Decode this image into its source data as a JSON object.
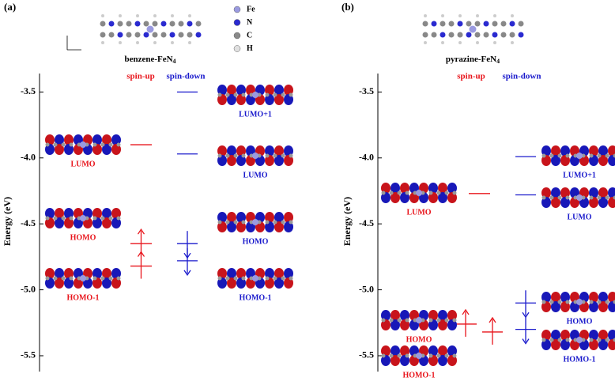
{
  "chart_data": [
    {
      "type": "energy_levels",
      "panel": "(a)",
      "molecule": "benzene-FeN",
      "molecule_sub": "4",
      "atoms": [
        "Fe",
        "N",
        "C",
        "H"
      ],
      "atom_colors": [
        "#9a9ae0",
        "#2a2ad0",
        "#8a8a8a",
        "#e0e0e0"
      ],
      "ylabel": "Energy (eV)",
      "ylim": [
        -5.62,
        -3.36
      ],
      "yticks": [
        -3.5,
        {
          "value": -4,
          "label": "-4.0"
        },
        -4.5,
        {
          "value": -5,
          "label": "-5.0"
        },
        -5.5
      ],
      "series": [
        {
          "name": "spin-up",
          "color": "#e8141b",
          "values": [
            -3.9,
            -4.65,
            -4.82
          ],
          "level_labels": [
            "LUMO",
            "HOMO",
            "HOMO-1"
          ],
          "occupied": [
            false,
            true,
            true
          ]
        },
        {
          "name": "spin-down",
          "color": "#1a1acc",
          "values": [
            -3.5,
            -3.97,
            -4.65,
            -4.78
          ],
          "level_labels": [
            "LUMO+1",
            "LUMO",
            "HOMO",
            "HOMO-1"
          ],
          "occupied": [
            false,
            false,
            true,
            true
          ]
        }
      ]
    },
    {
      "type": "energy_levels",
      "panel": "(b)",
      "molecule": "pyrazine-FeN",
      "molecule_sub": "4",
      "ylabel": "Energy (eV)",
      "ylim": [
        -5.62,
        -3.36
      ],
      "yticks": [
        -3.5,
        {
          "value": -4,
          "label": "-4.0"
        },
        -4.5,
        {
          "value": -5,
          "label": "-5.0"
        },
        -5.5
      ],
      "series": [
        {
          "name": "spin-up",
          "color": "#e8141b",
          "values": [
            -4.27,
            -5.26,
            -5.32
          ],
          "level_labels": [
            "LUMO",
            "HOMO",
            "HOMO-1"
          ],
          "occupied": [
            false,
            true,
            true
          ]
        },
        {
          "name": "spin-down",
          "color": "#1a1acc",
          "values": [
            -3.99,
            -4.28,
            -5.1,
            -5.3
          ],
          "level_labels": [
            "LUMO+1",
            "LUMO",
            "HOMO",
            "HOMO-1"
          ],
          "occupied": [
            false,
            false,
            true,
            true
          ]
        }
      ]
    }
  ]
}
